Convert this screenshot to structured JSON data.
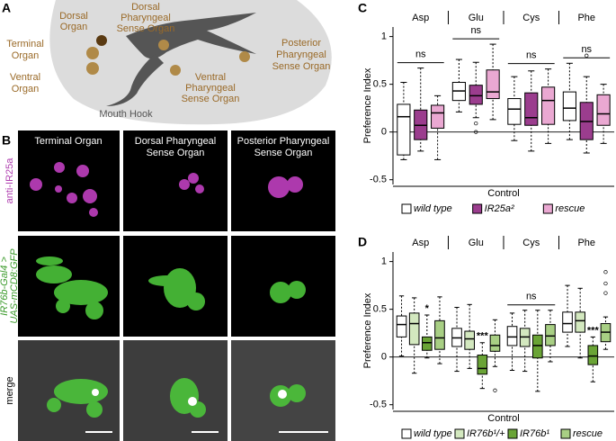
{
  "panel_labels": [
    "A",
    "B",
    "C",
    "D"
  ],
  "diagram": {
    "labels": [
      [
        "Dorsal",
        "Organ"
      ],
      [
        "Terminal",
        "Organ"
      ],
      [
        "Ventral",
        "Organ"
      ],
      [
        "Dorsal",
        "Pharyngeal",
        "Sense Organ"
      ],
      [
        "Ventral",
        "Pharyngeal",
        "Sense Organ"
      ],
      [
        "Posterior",
        "Pharyngeal",
        "Sense Organ"
      ],
      [
        "Mouth Hook"
      ]
    ]
  },
  "micrographs": {
    "columns": [
      [
        "Terminal Organ"
      ],
      [
        "Dorsal Pharyngeal",
        "Sense Organ"
      ],
      [
        "Posterior Pharyngeal",
        "Sense Organ"
      ]
    ],
    "rows": [
      [
        "anti-IR25a"
      ],
      [
        "IR76b-Gal4 >",
        "UAS-mCD8:GFP"
      ],
      [
        "merge"
      ]
    ]
  },
  "chart_data": [
    {
      "type": "box",
      "ylabel": "Preference Index",
      "xlabel": "Control",
      "categories": [
        "Asp",
        "Glu",
        "Cys",
        "Phe"
      ],
      "ylim": [
        -0.55,
        1.1
      ],
      "yticks": [
        -0.5,
        0,
        0.5,
        1
      ],
      "zeroline": true,
      "legend": "bottom",
      "series": [
        {
          "name": "wild type",
          "color": "#ffffff",
          "boxes": [
            {
              "whislo": -0.29,
              "q1": -0.24,
              "med": 0.16,
              "q3": 0.29,
              "whishi": 0.52
            },
            {
              "whislo": 0.21,
              "q1": 0.33,
              "med": 0.43,
              "q3": 0.52,
              "whishi": 0.76
            },
            {
              "whislo": -0.09,
              "q1": 0.08,
              "med": 0.24,
              "q3": 0.35,
              "whishi": 0.58
            },
            {
              "whislo": -0.08,
              "q1": 0.12,
              "med": 0.25,
              "q3": 0.42,
              "whishi": 0.72
            }
          ]
        },
        {
          "name": "IR25a²",
          "color": "#9b3d8e",
          "boxes": [
            {
              "whislo": -0.2,
              "q1": -0.08,
              "med": 0.07,
              "q3": 0.23,
              "whishi": 0.67
            },
            {
              "whislo": 0.15,
              "q1": 0.29,
              "med": 0.38,
              "q3": 0.49,
              "whishi": 0.73,
              "fliers": [
                0.09,
                0.0
              ]
            },
            {
              "whislo": -0.2,
              "q1": 0.07,
              "med": 0.15,
              "q3": 0.41,
              "whishi": 0.64
            },
            {
              "whislo": -0.22,
              "q1": -0.08,
              "med": 0.11,
              "q3": 0.31,
              "whishi": 0.58,
              "fliers": [
                0.8
              ]
            }
          ]
        },
        {
          "name": "rescue",
          "color": "#eaa8d2",
          "boxes": [
            {
              "whislo": -0.29,
              "q1": 0.04,
              "med": 0.2,
              "q3": 0.28,
              "whishi": 0.38
            },
            {
              "whislo": 0.13,
              "q1": 0.35,
              "med": 0.42,
              "q3": 0.65,
              "whishi": 0.92
            },
            {
              "whislo": -0.12,
              "q1": 0.08,
              "med": 0.33,
              "q3": 0.47,
              "whishi": 0.66
            },
            {
              "whislo": -0.12,
              "q1": 0.07,
              "med": 0.19,
              "q3": 0.39,
              "whishi": 0.5
            }
          ]
        }
      ],
      "annotations": [
        {
          "category": 0,
          "text": "ns"
        },
        {
          "category": 1,
          "text": "ns"
        },
        {
          "category": 2,
          "text": "ns"
        },
        {
          "category": 3,
          "text": "ns"
        }
      ]
    },
    {
      "type": "box",
      "ylabel": "Preference Index",
      "xlabel": "Control",
      "categories": [
        "Asp",
        "Glu",
        "Cys",
        "Phe"
      ],
      "ylim": [
        -0.55,
        1.1
      ],
      "yticks": [
        -0.5,
        0,
        0.5,
        1
      ],
      "zeroline": true,
      "legend": "bottom",
      "series": [
        {
          "name": "wild type",
          "color": "#ffffff",
          "boxes": [
            {
              "whislo": 0.01,
              "q1": 0.21,
              "med": 0.34,
              "q3": 0.43,
              "whishi": 0.64
            },
            {
              "whislo": -0.15,
              "q1": 0.11,
              "med": 0.2,
              "q3": 0.3,
              "whishi": 0.52
            },
            {
              "whislo": -0.14,
              "q1": 0.12,
              "med": 0.21,
              "q3": 0.32,
              "whishi": 0.46
            },
            {
              "whislo": 0.11,
              "q1": 0.26,
              "med": 0.35,
              "q3": 0.47,
              "whishi": 0.75
            }
          ]
        },
        {
          "name": "IR76b¹/+",
          "color": "#d3e8bf",
          "boxes": [
            {
              "whislo": -0.17,
              "q1": 0.13,
              "med": 0.35,
              "q3": 0.46,
              "whishi": 0.62
            },
            {
              "whislo": -0.12,
              "q1": 0.08,
              "med": 0.19,
              "q3": 0.27,
              "whishi": 0.55
            },
            {
              "whislo": -0.15,
              "q1": 0.11,
              "med": 0.21,
              "q3": 0.3,
              "whishi": 0.49
            },
            {
              "whislo": -0.01,
              "q1": 0.26,
              "med": 0.38,
              "q3": 0.47,
              "whishi": 0.72
            }
          ]
        },
        {
          "name": "IR76b¹",
          "color": "#6aa436",
          "boxes": [
            {
              "whislo": -0.01,
              "q1": 0.07,
              "med": 0.15,
              "q3": 0.21,
              "whishi": 0.44
            },
            {
              "whislo": -0.33,
              "q1": -0.18,
              "med": -0.12,
              "q3": 0.02,
              "whishi": 0.15
            },
            {
              "whislo": -0.36,
              "q1": -0.01,
              "med": 0.12,
              "q3": 0.23,
              "whishi": 0.49
            },
            {
              "whislo": -0.26,
              "q1": -0.08,
              "med": 0.01,
              "q3": 0.12,
              "whishi": 0.21
            }
          ]
        },
        {
          "name": "rescue",
          "color": "#a8cf84",
          "boxes": [
            {
              "whislo": -0.07,
              "q1": 0.08,
              "med": 0.2,
              "q3": 0.38,
              "whishi": 0.63
            },
            {
              "whislo": -0.1,
              "q1": 0.06,
              "med": 0.12,
              "q3": 0.23,
              "whishi": 0.39,
              "fliers": [
                -0.35
              ]
            },
            {
              "whislo": -0.05,
              "q1": 0.12,
              "med": 0.22,
              "q3": 0.34,
              "whishi": 0.49
            },
            {
              "whislo": 0.08,
              "q1": 0.16,
              "med": 0.26,
              "q3": 0.35,
              "whishi": 0.42,
              "fliers": [
                0.89,
                0.77,
                0.67
              ]
            }
          ]
        }
      ],
      "annotations": [
        {
          "category": 0,
          "series": 2,
          "text": "*"
        },
        {
          "category": 1,
          "series": 2,
          "text": "***"
        },
        {
          "category": 2,
          "text": "ns"
        },
        {
          "category": 3,
          "series": 2,
          "text": "***"
        }
      ]
    }
  ]
}
